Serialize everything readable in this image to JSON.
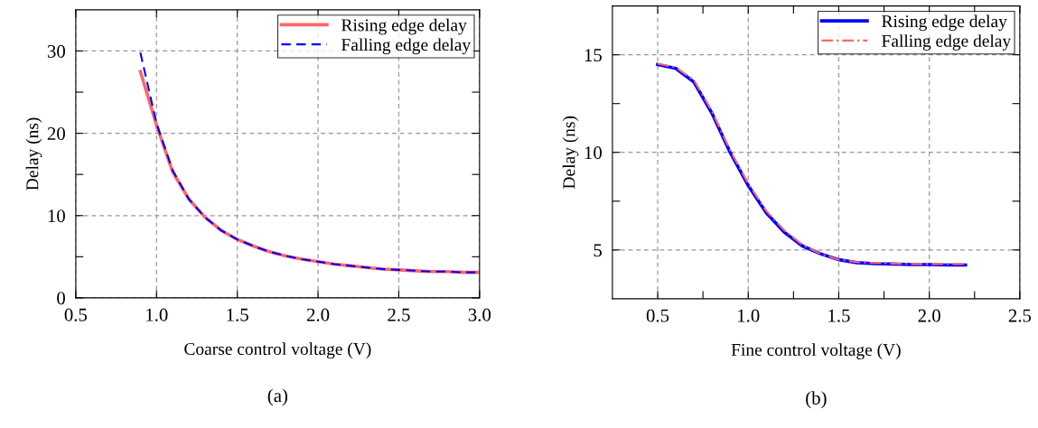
{
  "chart_data": [
    {
      "type": "line",
      "xlabel": "Coarse control voltage (V)",
      "ylabel": "Delay (ns)",
      "annotations": [
        "(a)"
      ],
      "x": [
        0.9,
        1.0,
        1.1,
        1.2,
        1.3,
        1.4,
        1.5,
        1.6,
        1.7,
        1.8,
        1.9,
        2.0,
        2.1,
        2.2,
        2.3,
        2.4,
        2.5,
        2.6,
        2.7,
        2.8,
        2.9,
        3.0
      ],
      "series": [
        {
          "name": "Rising edge delay",
          "color": "#ff6666",
          "line_style": "solid",
          "values": [
            27.5,
            21,
            15.3,
            12,
            9.8,
            8.2,
            7.1,
            6.3,
            5.6,
            5.1,
            4.7,
            4.4,
            4.1,
            3.9,
            3.7,
            3.5,
            3.4,
            3.3,
            3.2,
            3.2,
            3.1,
            3.1
          ]
        },
        {
          "name": "Falling edge delay",
          "color": "#0000ff",
          "line_style": "dashed",
          "values": [
            29.8,
            21.2,
            15.5,
            12,
            9.8,
            8.2,
            7.1,
            6.3,
            5.6,
            5.1,
            4.7,
            4.4,
            4.1,
            3.9,
            3.7,
            3.5,
            3.4,
            3.3,
            3.2,
            3.2,
            3.1,
            3.1
          ]
        }
      ],
      "xlim": [
        0.5,
        3.0
      ],
      "xticks": [
        0.5,
        {
          "value": 1,
          "label": "1.0"
        },
        1.5,
        {
          "value": 2,
          "label": "2.0"
        },
        2.5,
        {
          "value": 3,
          "label": "3.0"
        }
      ],
      "ylim": [
        0,
        35
      ],
      "yticks": [
        0,
        {
          "value": 5,
          "label": null
        },
        10,
        {
          "value": 15,
          "label": null
        },
        20,
        {
          "value": 25,
          "label": null
        },
        30
      ],
      "grid": true,
      "legend": "top right"
    },
    {
      "type": "line",
      "xlabel": "Fine control voltage (V)",
      "ylabel": "Delay (ns)",
      "annotations": [
        "(b)"
      ],
      "x": [
        0.5,
        0.6,
        0.7,
        0.8,
        0.9,
        1.0,
        1.1,
        1.2,
        1.3,
        1.4,
        1.5,
        1.6,
        1.7,
        1.8,
        1.9,
        2.0,
        2.1,
        2.2
      ],
      "series": [
        {
          "name": "Rising edge delay",
          "color": "#0000ff",
          "line_style": "solid",
          "values": [
            14.5,
            14.3,
            13.6,
            12.0,
            10.0,
            8.3,
            6.9,
            5.9,
            5.2,
            4.8,
            4.5,
            4.35,
            4.3,
            4.28,
            4.25,
            4.25,
            4.23,
            4.23
          ]
        },
        {
          "name": "Falling edge delay",
          "color": "#ff6666",
          "line_style": "dashdot",
          "values": [
            14.55,
            14.35,
            13.7,
            12.1,
            10.1,
            8.4,
            7.0,
            6.0,
            5.25,
            4.8,
            4.5,
            4.38,
            4.33,
            4.3,
            4.28,
            4.28,
            4.28,
            4.28
          ]
        }
      ],
      "xlim": [
        0.25,
        2.5
      ],
      "xticks": [
        0.5,
        {
          "value": 0.75,
          "label": null
        },
        {
          "value": 1,
          "label": "1.0"
        },
        {
          "value": 1.25,
          "label": null
        },
        1.5,
        {
          "value": 1.75,
          "label": null
        },
        {
          "value": 2,
          "label": "2.0"
        },
        {
          "value": 2.25,
          "label": null
        },
        2.5
      ],
      "ylim": [
        2.5,
        17.5
      ],
      "yticks": [
        5,
        {
          "value": 7.5,
          "label": null
        },
        10,
        {
          "value": 12.5,
          "label": null
        },
        15
      ],
      "grid": true,
      "legend": "top right"
    }
  ]
}
